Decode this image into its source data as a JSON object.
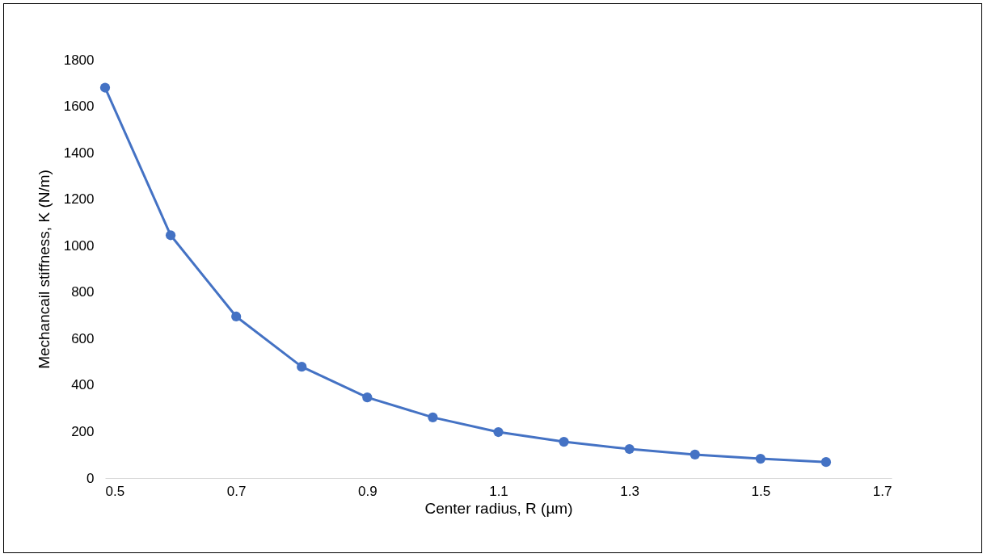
{
  "chart_data": {
    "type": "line",
    "xlabel": "Center radius, R (µm)",
    "ylabel": "Mechancail stiffness, K (N/m)",
    "x": [
      0.5,
      0.6,
      0.7,
      0.8,
      0.9,
      1.0,
      1.1,
      1.2,
      1.3,
      1.4,
      1.5,
      1.6
    ],
    "series": [
      {
        "color": "#4472c4",
        "values": [
          1680,
          1045,
          695,
          479,
          347,
          261,
          198,
          156,
          125,
          101,
          83,
          69
        ]
      }
    ],
    "xlim": [
      0.5,
      1.7
    ],
    "xticks": [
      0.5,
      0.7,
      0.9,
      1.1,
      1.3,
      1.5,
      1.7
    ],
    "ylim": [
      0,
      1800
    ],
    "yticks": [
      0,
      200,
      400,
      600,
      800,
      1000,
      1200,
      1400,
      1600,
      1800
    ],
    "grid": false,
    "legend": false,
    "marker": "circle",
    "line_style": "solid"
  }
}
